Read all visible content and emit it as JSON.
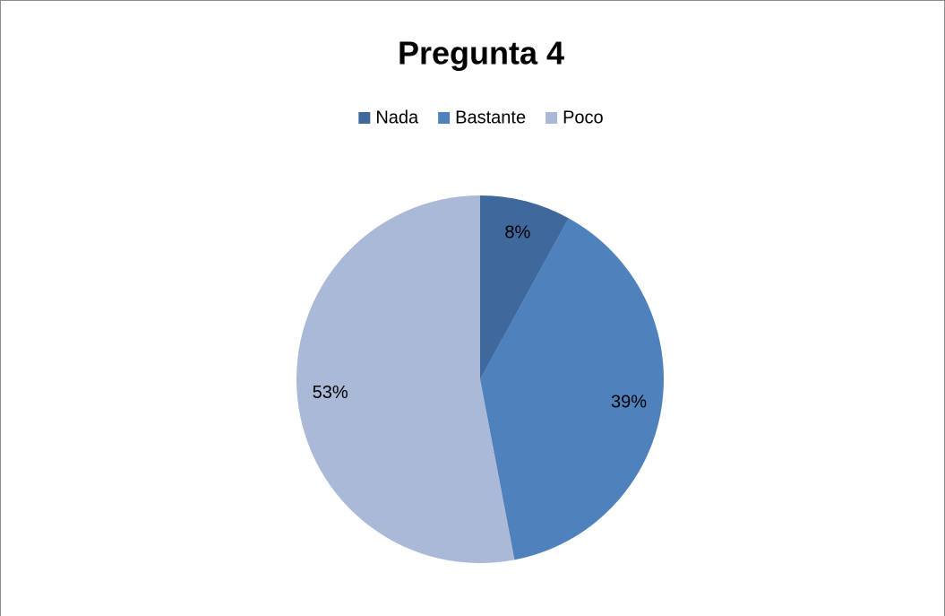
{
  "chart_data": {
    "type": "pie",
    "title": "Pregunta 4",
    "categories": [
      "Nada",
      "Bastante",
      "Poco"
    ],
    "values": [
      8,
      39,
      53
    ],
    "value_labels": [
      "8%",
      "39%",
      "53%"
    ],
    "colors": [
      "#3f689c",
      "#4f81bd",
      "#aab9d7"
    ],
    "legend": "top"
  }
}
